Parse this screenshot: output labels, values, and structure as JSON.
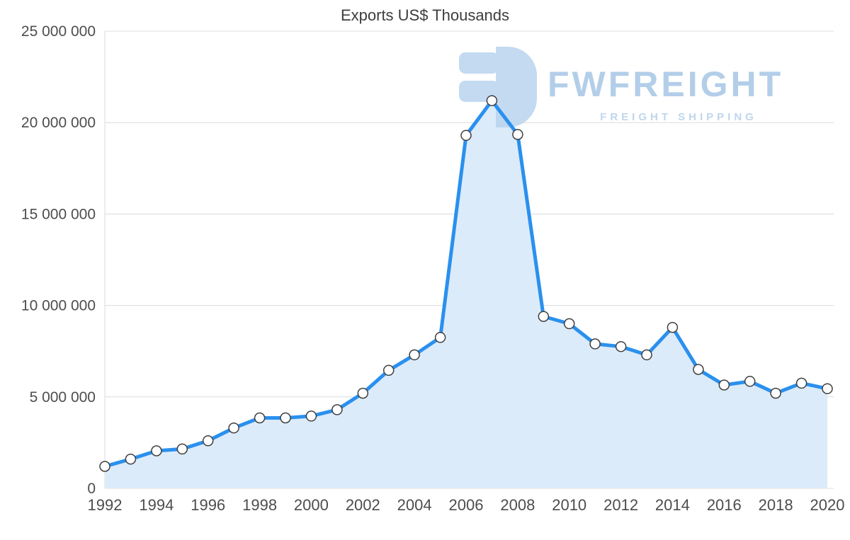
{
  "chart_data": {
    "type": "area",
    "title": "Exports US$ Thousands",
    "xlabel": "",
    "ylabel": "",
    "grid": true,
    "legend": "none",
    "x": [
      1992,
      1993,
      1994,
      1995,
      1996,
      1997,
      1998,
      1999,
      2000,
      2001,
      2002,
      2003,
      2004,
      2005,
      2006,
      2007,
      2008,
      2009,
      2010,
      2011,
      2012,
      2013,
      2014,
      2015,
      2016,
      2017,
      2018,
      2019,
      2020
    ],
    "values": [
      1200000,
      1600000,
      2050000,
      2150000,
      2600000,
      3300000,
      3850000,
      3850000,
      3950000,
      4300000,
      5200000,
      6450000,
      7300000,
      8250000,
      19300000,
      21200000,
      19350000,
      9400000,
      9000000,
      7900000,
      7750000,
      7300000,
      8800000,
      6500000,
      5650000,
      5850000,
      5200000,
      5750000,
      5450000
    ],
    "ylim": [
      0,
      25000000
    ],
    "y_ticks": [
      {
        "value": 0,
        "label": "0"
      },
      {
        "value": 5000000,
        "label": "5 000 000"
      },
      {
        "value": 10000000,
        "label": "10 000 000"
      },
      {
        "value": 15000000,
        "label": "15 000 000"
      },
      {
        "value": 20000000,
        "label": "20 000 000"
      },
      {
        "value": 25000000,
        "label": "25 000 000"
      }
    ],
    "x_tick_labels": [
      "1992",
      "1994",
      "1996",
      "1998",
      "2000",
      "2002",
      "2004",
      "2006",
      "2008",
      "2010",
      "2012",
      "2014",
      "2016",
      "2018",
      "2020"
    ],
    "line_color": "#2a90ee",
    "fill_color": "#dcebfa",
    "marker_style": "white-circle-dark-ring"
  },
  "watermark": {
    "brand": "FWFREIGHT",
    "tagline": "FREIGHT SHIPPING",
    "brand_color": "#a6c6e6",
    "tagline_color": "#b5cfeb",
    "logo_color": "#b9d4ef"
  }
}
